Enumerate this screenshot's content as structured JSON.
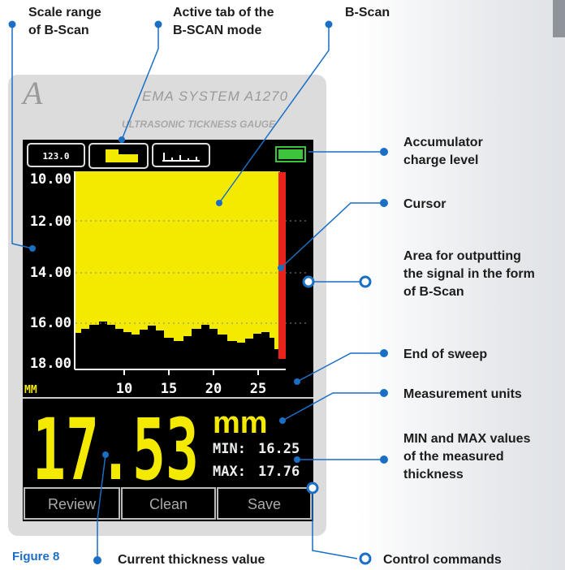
{
  "annotations": {
    "scale_range": [
      "Scale range",
      "of B-Scan"
    ],
    "active_tab": [
      "Active tab of the",
      "B-SCAN mode"
    ],
    "b_scan": [
      "B-Scan"
    ],
    "accumulator": [
      "Accumulator",
      "charge level"
    ],
    "cursor": [
      "Cursor"
    ],
    "area": [
      "Area for outputting",
      "the signal in the form",
      "of B-Scan"
    ],
    "end_of_sweep": [
      "End of sweep"
    ],
    "units": [
      "Measurement units"
    ],
    "min_max": [
      "MIN and MAX values",
      "of the measured",
      "thickness"
    ],
    "current_value": [
      "Current thickness value"
    ],
    "control": [
      "Control commands"
    ]
  },
  "figure_label": "Figure 8",
  "device": {
    "brand": "EMA SYSTEM A1270",
    "subtitle": "ULTRASONIC TICKNESS GAUGE",
    "tab_label": "123.0",
    "y_labels": [
      "10.00",
      "12.00",
      "14.00",
      "16.00",
      "18.00"
    ],
    "x_labels": [
      "10",
      "15",
      "20",
      "25"
    ],
    "unit_small": "MM",
    "thickness": "17.53",
    "unit": "mm",
    "min_label": "MIN:",
    "min_value": "16.25",
    "max_label": "MAX:",
    "max_value": "17.76",
    "buttons": [
      "Review",
      "Clean",
      "Save"
    ]
  }
}
